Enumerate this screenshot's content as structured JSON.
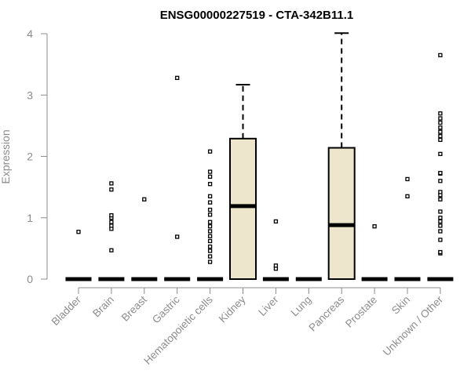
{
  "chart_data": {
    "type": "boxplot",
    "title": "ENSG00000227519 - CTA-342B11.1",
    "xlabel": "",
    "ylabel": "Expression",
    "ylim": [
      0,
      4
    ],
    "yticks": [
      0,
      1,
      2,
      3,
      4
    ],
    "box_fill": "#ede6cc",
    "categories": [
      "Bladder",
      "Brain",
      "Breast",
      "Gastric",
      "Hematopoietic cells",
      "Kidney",
      "Liver",
      "Lung",
      "Pancreas",
      "Prostate",
      "Skin",
      "Unknown / Other"
    ],
    "boxes": [
      {
        "category": "Bladder",
        "q1": 0,
        "median": 0,
        "q3": 0,
        "whisker_low": 0,
        "whisker_high": 0,
        "outliers": [
          0.77
        ]
      },
      {
        "category": "Brain",
        "q1": 0,
        "median": 0,
        "q3": 0,
        "whisker_low": 0,
        "whisker_high": 0,
        "outliers": [
          0.47,
          0.82,
          0.87,
          0.93,
          1.0,
          1.04,
          1.46,
          1.56
        ]
      },
      {
        "category": "Breast",
        "q1": 0,
        "median": 0,
        "q3": 0,
        "whisker_low": 0,
        "whisker_high": 0,
        "outliers": [
          1.3
        ]
      },
      {
        "category": "Gastric",
        "q1": 0,
        "median": 0,
        "q3": 0,
        "whisker_low": 0,
        "whisker_high": 0,
        "outliers": [
          0.69,
          3.28
        ]
      },
      {
        "category": "Hematopoietic cells",
        "q1": 0,
        "median": 0,
        "q3": 0,
        "whisker_low": 0,
        "whisker_high": 0,
        "outliers": [
          0.28,
          0.37,
          0.46,
          0.53,
          0.62,
          0.7,
          0.78,
          0.86,
          0.93,
          1.05,
          1.13,
          1.25,
          1.35,
          1.55,
          1.67,
          1.75,
          2.08
        ]
      },
      {
        "category": "Kidney",
        "q1": 0,
        "median": 1.19,
        "q3": 2.29,
        "whisker_low": 0,
        "whisker_high": 3.17,
        "outliers": []
      },
      {
        "category": "Liver",
        "q1": 0,
        "median": 0,
        "q3": 0,
        "whisker_low": 0,
        "whisker_high": 0,
        "outliers": [
          0.17,
          0.22,
          0.94
        ]
      },
      {
        "category": "Lung",
        "q1": 0,
        "median": 0,
        "q3": 0,
        "whisker_low": 0,
        "whisker_high": 0,
        "outliers": []
      },
      {
        "category": "Pancreas",
        "q1": 0,
        "median": 0.88,
        "q3": 2.14,
        "whisker_low": 0,
        "whisker_high": 4.01,
        "outliers": []
      },
      {
        "category": "Prostate",
        "q1": 0,
        "median": 0,
        "q3": 0,
        "whisker_low": 0,
        "whisker_high": 0,
        "outliers": [
          0.86
        ]
      },
      {
        "category": "Skin",
        "q1": 0,
        "median": 0,
        "q3": 0,
        "whisker_low": 0,
        "whisker_high": 0,
        "outliers": [
          1.35,
          1.63
        ]
      },
      {
        "category": "Unknown / Other",
        "q1": 0,
        "median": 0,
        "q3": 0,
        "whisker_low": 0,
        "whisker_high": 0,
        "outliers": [
          0.42,
          0.44,
          0.64,
          0.78,
          0.87,
          0.94,
          1.0,
          1.1,
          1.3,
          1.37,
          1.42,
          1.6,
          1.72,
          1.73,
          2.04,
          2.27,
          2.33,
          2.4,
          2.47,
          2.55,
          2.62,
          2.7,
          3.65
        ]
      }
    ]
  }
}
